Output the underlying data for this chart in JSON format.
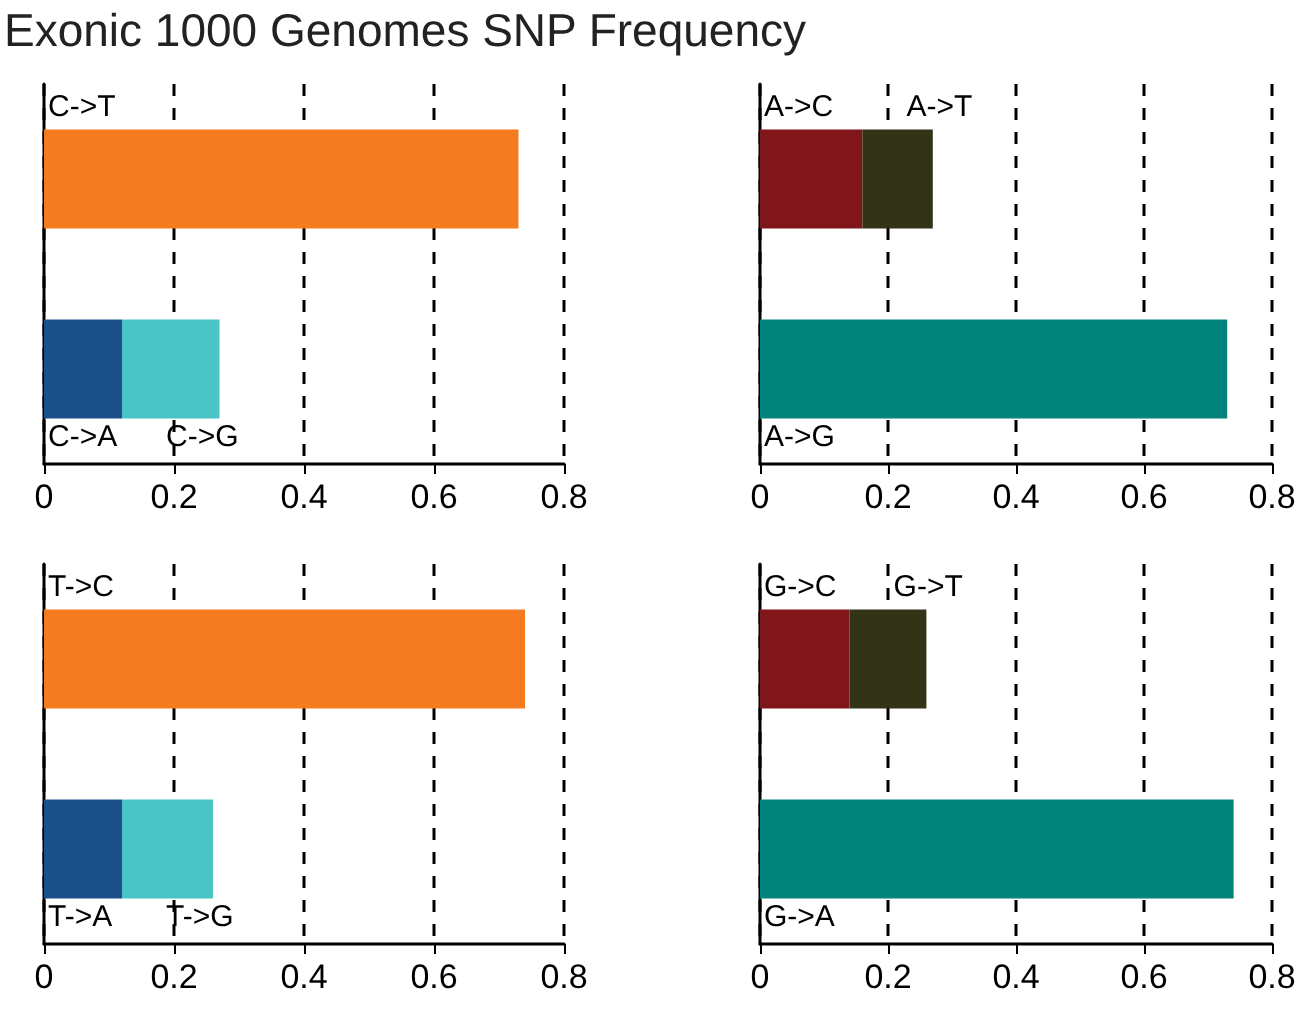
{
  "chart_data": [
    {
      "type": "bar",
      "title": "Exonic 1000 Genomes SNP Frequency",
      "orientation": "horizontal",
      "stacked": true,
      "categories": [
        null,
        null
      ],
      "xlim": [
        0,
        0.8
      ],
      "xticks": [
        0,
        0.2,
        0.4,
        0.6,
        0.8
      ],
      "grid": "x",
      "legend": false,
      "series": [
        {
          "name": "C->T",
          "color": "#f47b20",
          "values": [
            0.73,
            null
          ]
        },
        {
          "name": "C->A",
          "color": "#1b4f8a",
          "values": [
            null,
            0.12
          ]
        },
        {
          "name": "C->G",
          "color": "#4bc4c8",
          "values": [
            null,
            0.15
          ]
        }
      ]
    },
    {
      "type": "bar",
      "orientation": "horizontal",
      "stacked": true,
      "categories": [
        null,
        null
      ],
      "xlim": [
        0,
        0.8
      ],
      "xticks": [
        0,
        0.2,
        0.4,
        0.6,
        0.8
      ],
      "grid": "x",
      "legend": false,
      "series": [
        {
          "name": "A->C",
          "color": "#80151a",
          "values": [
            0.16,
            null
          ]
        },
        {
          "name": "A->T",
          "color": "#333317",
          "values": [
            0.11,
            null
          ]
        },
        {
          "name": "A->G",
          "color": "#00837a",
          "values": [
            null,
            0.73
          ]
        }
      ]
    },
    {
      "type": "bar",
      "orientation": "horizontal",
      "stacked": true,
      "categories": [
        null,
        null
      ],
      "xlim": [
        0,
        0.8
      ],
      "xticks": [
        0,
        0.2,
        0.4,
        0.6,
        0.8
      ],
      "grid": "x",
      "legend": false,
      "series": [
        {
          "name": "T->C",
          "color": "#f47b20",
          "values": [
            0.74,
            null
          ]
        },
        {
          "name": "T->A",
          "color": "#1b4f8a",
          "values": [
            null,
            0.12
          ]
        },
        {
          "name": "T->G",
          "color": "#4bc4c8",
          "values": [
            null,
            0.14
          ]
        }
      ]
    },
    {
      "type": "bar",
      "orientation": "horizontal",
      "stacked": true,
      "categories": [
        null,
        null
      ],
      "xlim": [
        0,
        0.8
      ],
      "xticks": [
        0,
        0.2,
        0.4,
        0.6,
        0.8
      ],
      "grid": "x",
      "legend": false,
      "series": [
        {
          "name": "G->C",
          "color": "#80151a",
          "values": [
            0.14,
            null
          ]
        },
        {
          "name": "G->T",
          "color": "#333317",
          "values": [
            0.12,
            null
          ]
        },
        {
          "name": "G->A",
          "color": "#00837a",
          "values": [
            null,
            0.74
          ]
        }
      ]
    }
  ]
}
